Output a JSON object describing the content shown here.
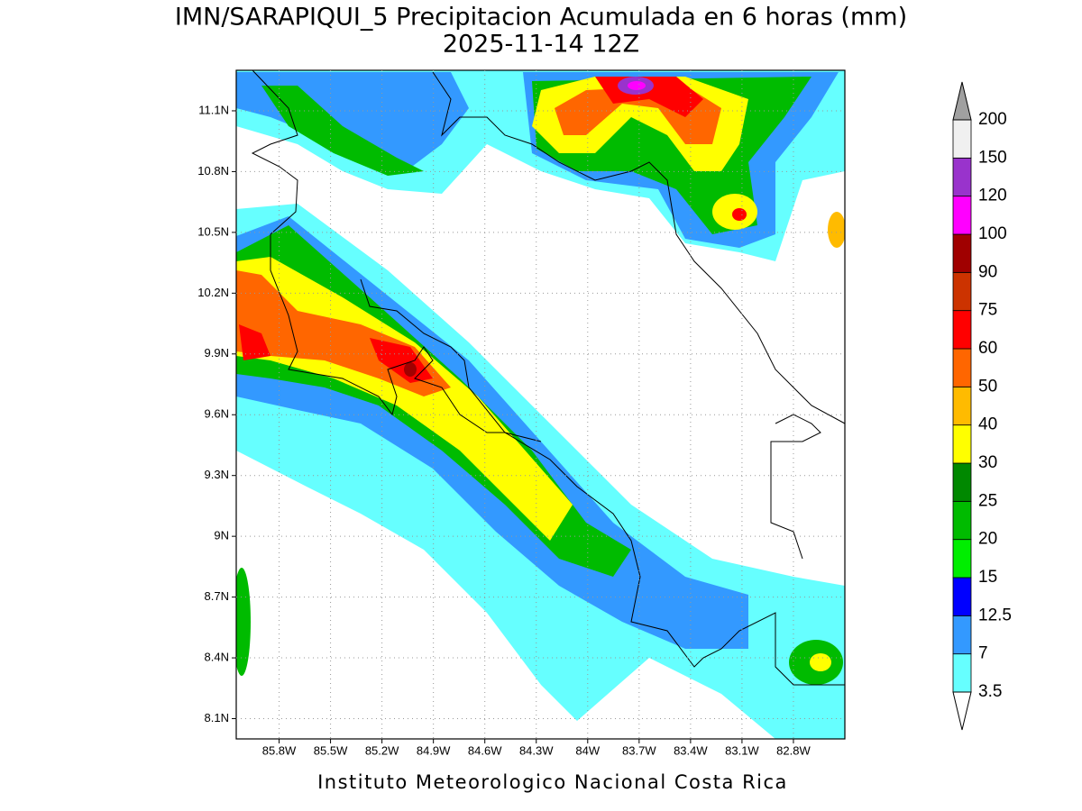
{
  "header": {
    "title": "IMN/SARAPIQUI_5 Precipitacion Acumulada en 6 horas (mm)",
    "subtitle": "2025-11-14 12Z"
  },
  "footer": "Instituto Meteorologico Nacional Costa Rica",
  "map": {
    "latlim": [
      8.0,
      11.3
    ],
    "lonlim": [
      -86.05,
      -82.5
    ],
    "grid": true,
    "latticks": [
      {
        "value": 8.1,
        "label": "8.1N"
      },
      {
        "value": 8.4,
        "label": "8.4N"
      },
      {
        "value": 8.7,
        "label": "8.7N"
      },
      {
        "value": 9.0,
        "label": "9N"
      },
      {
        "value": 9.3,
        "label": "9.3N"
      },
      {
        "value": 9.6,
        "label": "9.6N"
      },
      {
        "value": 9.9,
        "label": "9.9N"
      },
      {
        "value": 10.2,
        "label": "10.2N"
      },
      {
        "value": 10.5,
        "label": "10.5N"
      },
      {
        "value": 10.8,
        "label": "10.8N"
      },
      {
        "value": 11.1,
        "label": "11.1N"
      }
    ],
    "lonticks": [
      {
        "value": -85.8,
        "label": "85.8W"
      },
      {
        "value": -85.5,
        "label": "85.5W"
      },
      {
        "value": -85.2,
        "label": "85.2W"
      },
      {
        "value": -84.9,
        "label": "84.9W"
      },
      {
        "value": -84.6,
        "label": "84.6W"
      },
      {
        "value": -84.3,
        "label": "84.3W"
      },
      {
        "value": -84.0,
        "label": "84W"
      },
      {
        "value": -83.7,
        "label": "83.7W"
      },
      {
        "value": -83.4,
        "label": "83.4W"
      },
      {
        "value": -83.1,
        "label": "83.1W"
      },
      {
        "value": -82.8,
        "label": "82.8W"
      }
    ]
  },
  "colorbar": {
    "levels": [
      3.5,
      7,
      12.5,
      15,
      20,
      25,
      30,
      40,
      50,
      60,
      75,
      90,
      100,
      120,
      150,
      200
    ],
    "colors": [
      "#66ffff",
      "#3399ff",
      "#0000ff",
      "#00ee00",
      "#00bb00",
      "#008800",
      "#ffff00",
      "#ffbb00",
      "#ff6600",
      "#ff0000",
      "#cc3300",
      "#a00000",
      "#ff00ff",
      "#9933cc",
      "#f0f0f0"
    ],
    "under_color": "#ffffff",
    "over_color": "#a0a0a0"
  }
}
